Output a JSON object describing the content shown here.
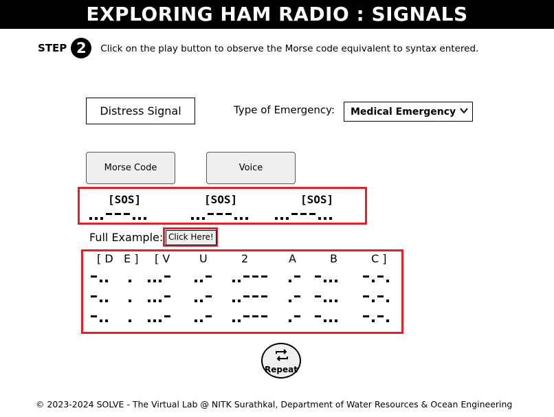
{
  "header": {
    "title": "EXPLORING HAM RADIO : SIGNALS"
  },
  "step": {
    "label": "STEP",
    "number": "2",
    "instruction": "Click on the play button to observe the Morse code equivalent to syntax entered."
  },
  "distress_signal": {
    "label": "Distress Signal"
  },
  "emergency": {
    "label": "Type of Emergency:",
    "selected": "Medical Emergency",
    "icon": "chevron-down-icon"
  },
  "mode_buttons": {
    "morse": "Morse Code",
    "voice": "Voice"
  },
  "sos_output": {
    "labels": [
      "[SOS]",
      "[SOS]",
      "[SOS]"
    ],
    "morse": [
      "...---...",
      "...---...",
      "...---..."
    ]
  },
  "full_example": {
    "label": "Full Example:",
    "button": "Click Here!"
  },
  "callsign": {
    "letters": [
      "[ D",
      "E ]",
      "[ V",
      "U",
      "2",
      "A",
      "B",
      "C ]"
    ],
    "morse": [
      "-..",
      ".",
      "...-",
      "..-",
      "..---",
      ".-",
      "-...",
      "-.-."
    ],
    "repeat_rows": 3
  },
  "repeat": {
    "label": "Repeat",
    "icon": "repeat-arrows-icon"
  },
  "footer": {
    "text": "© 2023-2024 SOLVE - The Virtual Lab @ NITK Surathkal, Department of Water Resources & Ocean Engineering"
  },
  "colors": {
    "highlight_border": "#e0202a",
    "title_bg": "#000000"
  }
}
